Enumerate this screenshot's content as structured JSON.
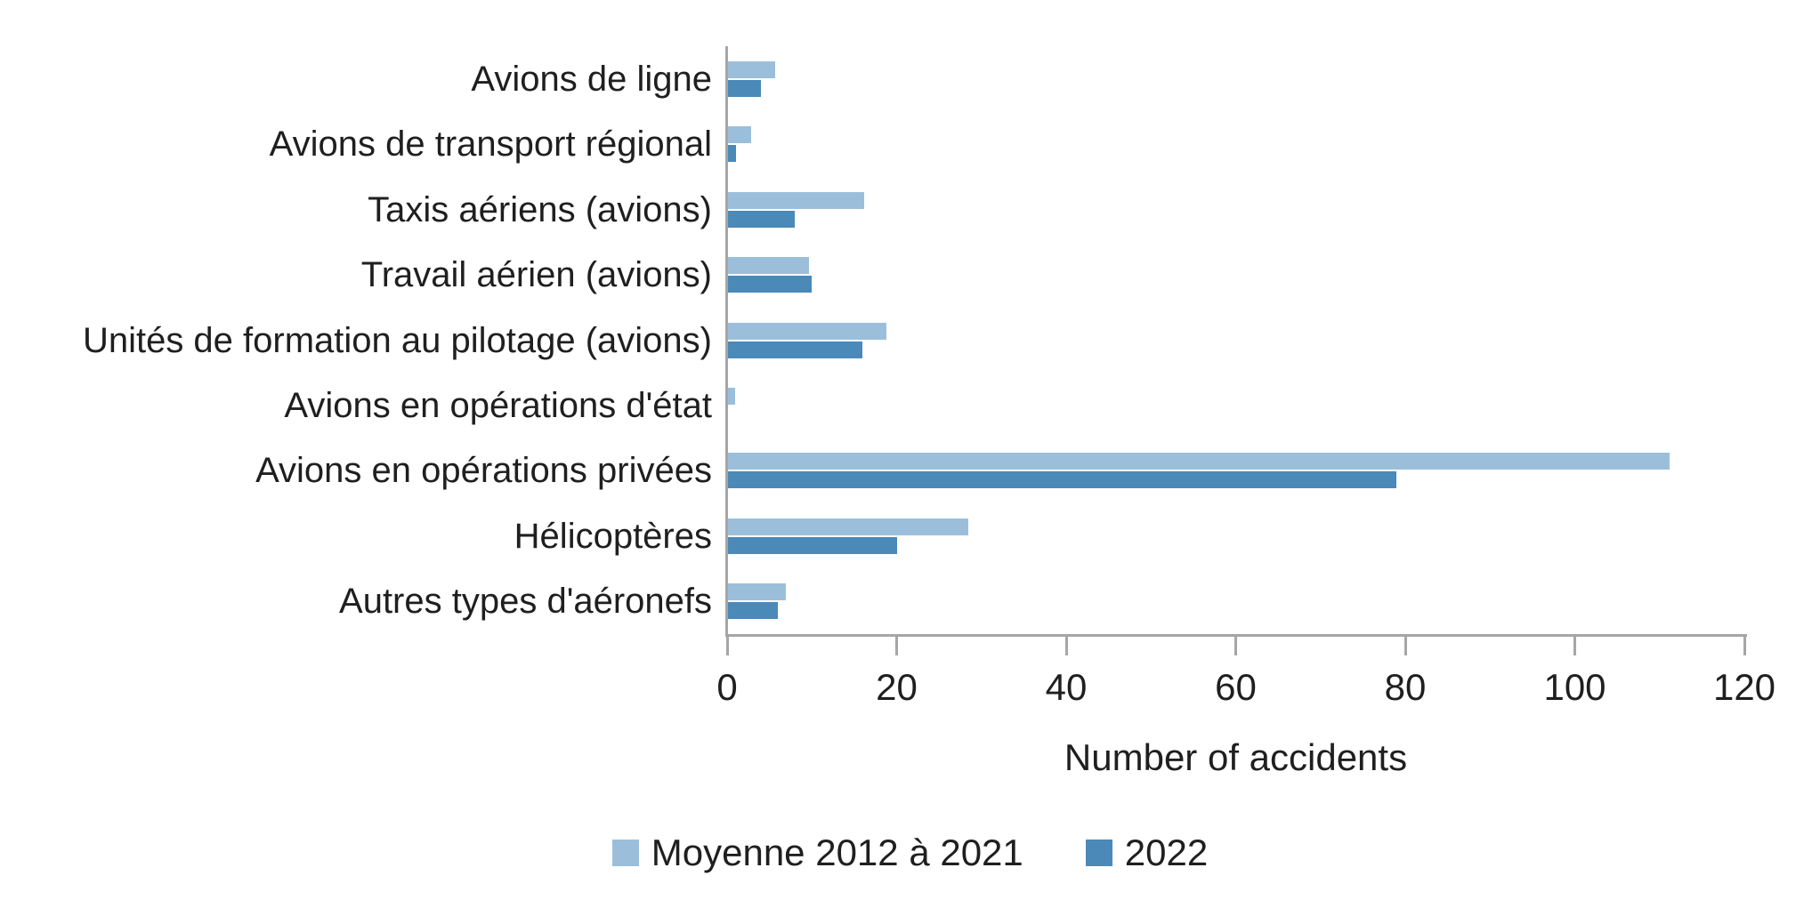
{
  "chart_data": {
    "type": "bar",
    "orientation": "horizontal",
    "title": "",
    "xlabel": "Number of accidents",
    "ylabel": "",
    "xlim": [
      0,
      120
    ],
    "x_ticks": [
      0,
      20,
      40,
      60,
      80,
      100,
      120
    ],
    "grid": false,
    "legend_position": "bottom",
    "axis_color": "#a6a6a6",
    "text_color": "#1f1f1f",
    "categories": [
      "Avions de ligne",
      "Avions de transport régional",
      "Taxis aériens (avions)",
      "Travail aérien (avions)",
      "Unités de formation au pilotage (avions)",
      "Avions en opérations d'état",
      "Avions en opérations privées",
      "Hélicoptères",
      "Autres types d'aéronefs"
    ],
    "series": [
      {
        "name": "Moyenne 2012 à 2021",
        "color": "#9bbfdb",
        "values": [
          5.7,
          2.8,
          16.2,
          9.7,
          18.8,
          0.9,
          111.2,
          28.5,
          6.9
        ]
      },
      {
        "name": "2022",
        "color": "#4a89b8",
        "values": [
          4,
          1,
          8,
          10,
          16,
          0,
          79,
          20,
          6
        ]
      }
    ]
  }
}
